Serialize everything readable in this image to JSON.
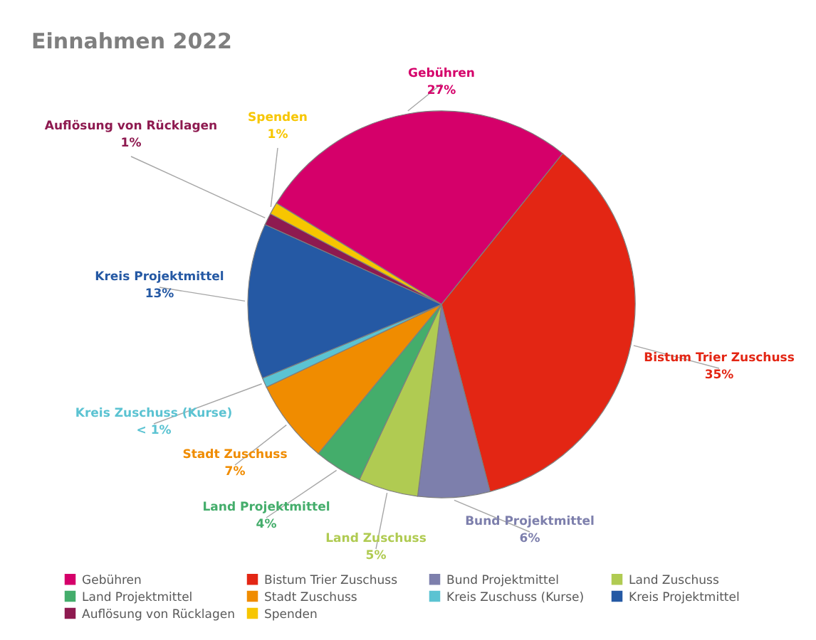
{
  "chart_data": {
    "type": "pie",
    "title": "Einnahmen 2022",
    "categories": [
      "Gebühren",
      "Bistum Trier Zuschuss",
      "Bund Projektmittel",
      "Land Zuschuss",
      "Land Projektmittel",
      "Stadt Zuschuss",
      "Kreis Zuschuss (Kurse)",
      "Kreis Projektmittel",
      "Auflösung von Rücklagen",
      "Spenden"
    ],
    "values": [
      27,
      35.2,
      6,
      5,
      4,
      7,
      0.8,
      13,
      1,
      1
    ],
    "value_labels": [
      "27%",
      "35%",
      "6%",
      "5%",
      "4%",
      "7%",
      "< 1%",
      "13%",
      "1%",
      "1%"
    ],
    "colors": [
      "#d5006a",
      "#e32614",
      "#7d7fac",
      "#b0cb52",
      "#44ad6b",
      "#f08c00",
      "#5bc3d2",
      "#2559a4",
      "#8e1a50",
      "#f7c600"
    ],
    "legend": "bottom"
  }
}
